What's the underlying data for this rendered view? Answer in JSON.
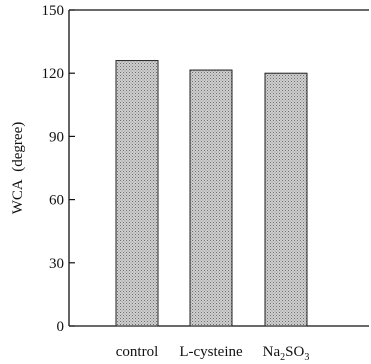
{
  "chart_data": {
    "type": "bar",
    "categories": [
      "control",
      "L-cysteine",
      "Na2SO3"
    ],
    "category_labels": [
      {
        "parts": [
          {
            "text": "control",
            "sub": false
          }
        ]
      },
      {
        "parts": [
          {
            "text": "L-cysteine",
            "sub": false
          }
        ]
      },
      {
        "parts": [
          {
            "text": "Na",
            "sub": false
          },
          {
            "text": "2",
            "sub": true
          },
          {
            "text": "SO",
            "sub": false
          },
          {
            "text": "3",
            "sub": true
          }
        ]
      }
    ],
    "values": [
      126,
      121.5,
      120
    ],
    "ylabel": "WCA  (degree)",
    "xlabel": "",
    "ylim": [
      0,
      150
    ],
    "yticks": [
      0,
      30,
      60,
      90,
      120,
      150
    ],
    "grid": false,
    "bar_fill": "#b4b4b4",
    "bar_edge": "#222222"
  }
}
